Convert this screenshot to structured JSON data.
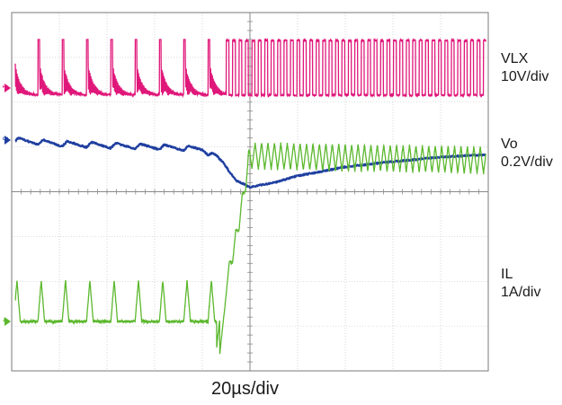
{
  "chart_data": {
    "type": "line",
    "title": "",
    "xlabel": "20µs/div",
    "ylabel": "",
    "grid": true,
    "time_per_div_us": 20,
    "horizontal_divisions": 10,
    "vertical_divisions": 8,
    "time_range_us": [
      0,
      200
    ],
    "event_time_us": 90,
    "series": [
      {
        "name": "VLX",
        "scale": "10V/div",
        "color": "#e0177a",
        "marker": "1",
        "behavior": "pulse-skipping switching bursts (~8 bursts of decaying ringing) before load step, continuous switching after",
        "burst_period_us": 10.2,
        "switching_period_us": 2.7,
        "amplitude_div": 1.0
      },
      {
        "name": "Vo",
        "scale": "0.2V/div",
        "color": "#1f3fa0",
        "marker": "3",
        "behavior": "ripple around steady level, undershoot at load step then slow recovery",
        "x_us": [
          0,
          20,
          40,
          60,
          80,
          88,
          94,
          100,
          110,
          120,
          140,
          160,
          180,
          200
        ],
        "y_div": [
          0.0,
          -0.08,
          -0.12,
          -0.15,
          -0.2,
          -0.45,
          -0.9,
          -1.05,
          -0.95,
          -0.8,
          -0.6,
          -0.48,
          -0.38,
          -0.32
        ]
      },
      {
        "name": "IL",
        "scale": "1A/div",
        "color": "#5cb82e",
        "marker": "4",
        "behavior": "triangular peaks before load step, rising ramp then continuous triangular ripple at higher current",
        "x_us": [
          0,
          86,
          90,
          95,
          100,
          200
        ],
        "y_div": [
          0.0,
          0.0,
          0.8,
          2.1,
          3.7,
          3.6
        ]
      }
    ]
  },
  "labels": {
    "vlx_name": "VLX",
    "vlx_scale": "10V/div",
    "vo_name": "Vo",
    "vo_scale": "0.2V/div",
    "il_name": "IL",
    "il_scale": "1A/div",
    "time_scale": "20µs/div"
  },
  "markers": {
    "ch_vlx": "1",
    "ch_vo": "3",
    "ch_il": "4"
  },
  "colors": {
    "grid": "#bdbdbd",
    "frame": "#7a7a7a",
    "background": "#ffffff"
  }
}
